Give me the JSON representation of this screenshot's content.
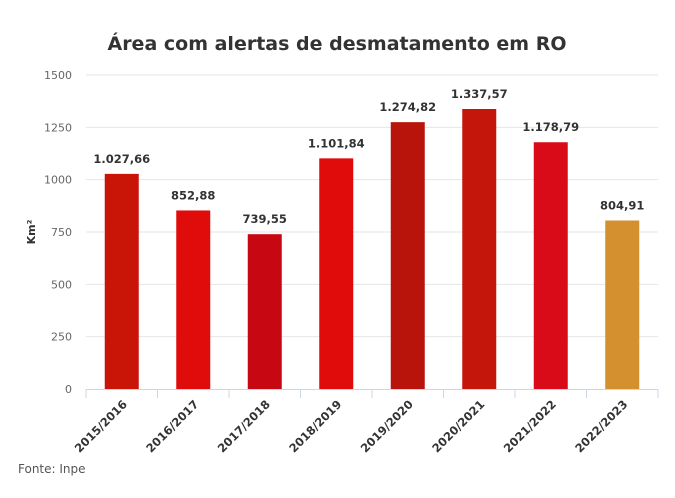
{
  "chart_data": {
    "type": "bar",
    "title": "Área com alertas de desmatamento em RO",
    "xlabel": "",
    "ylabel": "Km²",
    "ylim": [
      0,
      1500
    ],
    "yticks": [
      0,
      250,
      500,
      750,
      1000,
      1250,
      1500
    ],
    "grid": true,
    "categories": [
      "2015/2016",
      "2016/2017",
      "2017/2018",
      "2018/2019",
      "2019/2020",
      "2020/2021",
      "2021/2022",
      "2022/2023"
    ],
    "values": [
      1027.66,
      852.88,
      739.55,
      1101.84,
      1274.82,
      1337.57,
      1178.79,
      804.91
    ],
    "data_labels": [
      "1.027,66",
      "852,88",
      "739,55",
      "1.101,84",
      "1.274,82",
      "1.337,57",
      "1.178,79",
      "804,91"
    ],
    "colors": [
      "#c81508",
      "#e00b0b",
      "#c70712",
      "#e00b0b",
      "#b8140c",
      "#c4160b",
      "#d90b18",
      "#d48f2e"
    ]
  },
  "source": "Fonte: Inpe"
}
